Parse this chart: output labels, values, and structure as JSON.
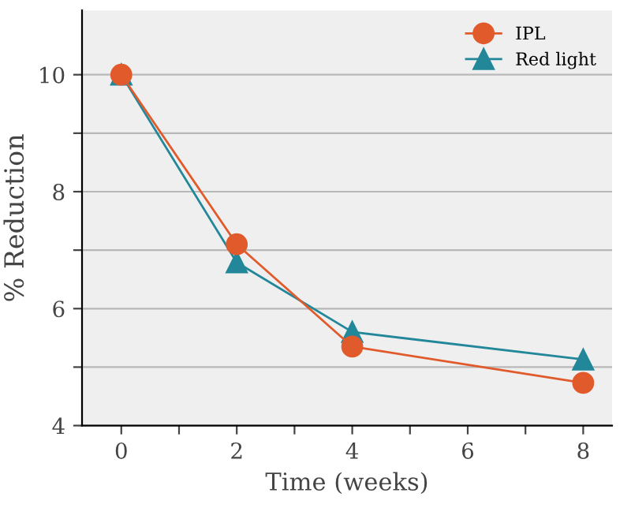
{
  "chart_data": {
    "type": "line",
    "xlabel": "Time (weeks)",
    "ylabel": "% Reduction",
    "x": [
      0,
      2,
      4,
      8
    ],
    "series": [
      {
        "name": "IPL",
        "color": "#e05a2b",
        "values": [
          10,
          7.1,
          5.35,
          4.73
        ],
        "marker": "circle"
      },
      {
        "name": "Red light",
        "color": "#23879a",
        "values": [
          10,
          6.79,
          5.6,
          5.13
        ],
        "marker": "triangle"
      }
    ],
    "xlim": [
      -0.68,
      8.5
    ],
    "xticks": [
      0,
      {
        "value": 1,
        "label": null
      },
      2,
      {
        "value": 3,
        "label": null
      },
      4,
      {
        "value": 5,
        "label": null
      },
      6,
      {
        "value": 7,
        "label": null
      },
      8
    ],
    "ylim": [
      4,
      11.1
    ],
    "yticks": [
      4,
      {
        "value": 5,
        "label": null
      },
      6,
      {
        "value": 7,
        "label": null
      },
      8,
      {
        "value": 9,
        "label": null
      },
      10
    ],
    "grid": "y",
    "legend": "top right",
    "line_style": "solid"
  }
}
